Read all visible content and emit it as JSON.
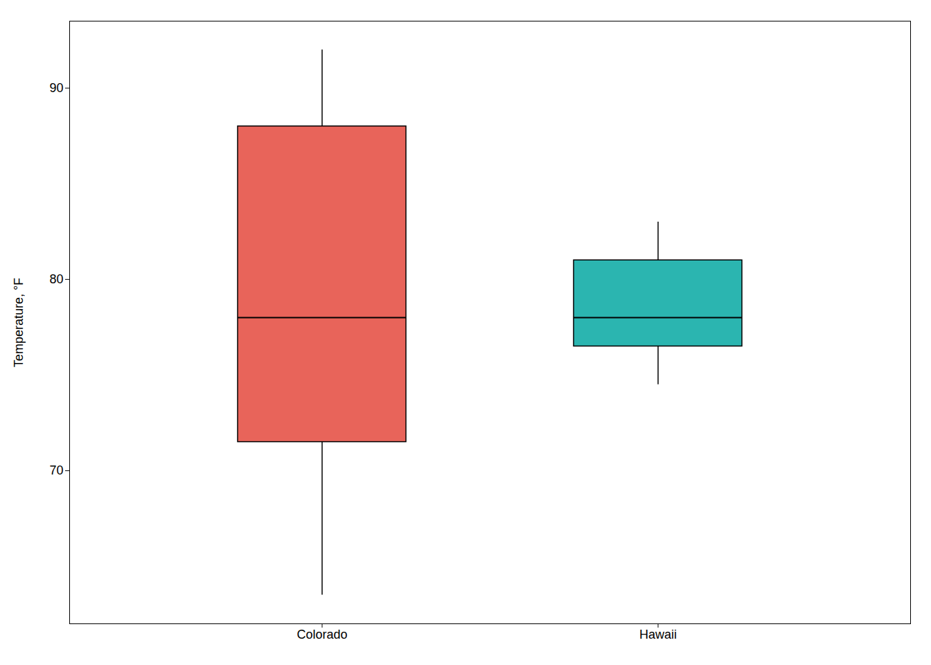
{
  "chart_data": {
    "type": "box",
    "ylabel": "Temperature, °F",
    "categories": [
      "Colorado",
      "Hawaii"
    ],
    "colors": [
      "#E8645A",
      "#2BB5B0"
    ],
    "whisker_low": [
      63.5,
      74.5
    ],
    "q1": [
      71.5,
      76.5
    ],
    "median": [
      78.0,
      78.0
    ],
    "q3": [
      88.0,
      81.0
    ],
    "whisker_high": [
      92.0,
      83.0
    ],
    "ylim": [
      62.0,
      93.5
    ],
    "yticks": [
      70,
      80,
      90
    ],
    "grid": false
  }
}
